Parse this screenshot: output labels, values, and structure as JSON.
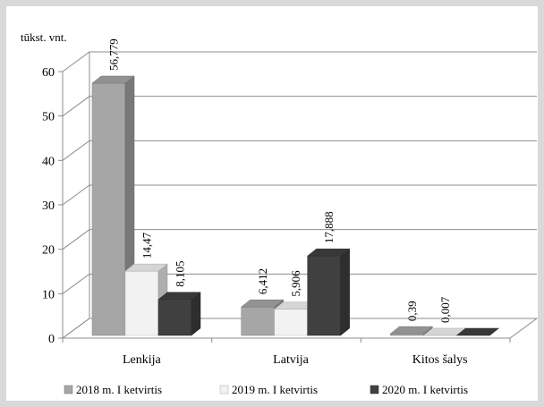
{
  "chart_data": {
    "type": "bar",
    "style": "3d-clustered-column",
    "unit_label": "tūkst. vnt.",
    "categories": [
      "Lenkija",
      "Latvija",
      "Kitos šalys"
    ],
    "series": [
      {
        "name": "2018 m. I ketvirtis",
        "values": [
          56.779,
          6.412,
          0.39
        ],
        "labels": [
          "56,779",
          "6,412",
          "0,39"
        ],
        "color": "#a6a6a6"
      },
      {
        "name": "2019 m. I ketvirtis",
        "values": [
          14.47,
          5.906,
          0.007
        ],
        "labels": [
          "14,47",
          "5,906",
          "0,007"
        ],
        "color": "#f2f2f2"
      },
      {
        "name": "2020 m. I ketvirtis",
        "values": [
          8.105,
          17.888,
          0
        ],
        "labels": [
          "8,105",
          "17,888",
          ""
        ],
        "color": "#404040"
      }
    ],
    "yticks": [
      0,
      10,
      20,
      30,
      40,
      50,
      60
    ],
    "ylim": [
      0,
      60
    ],
    "grid": true,
    "legend_position": "bottom"
  }
}
